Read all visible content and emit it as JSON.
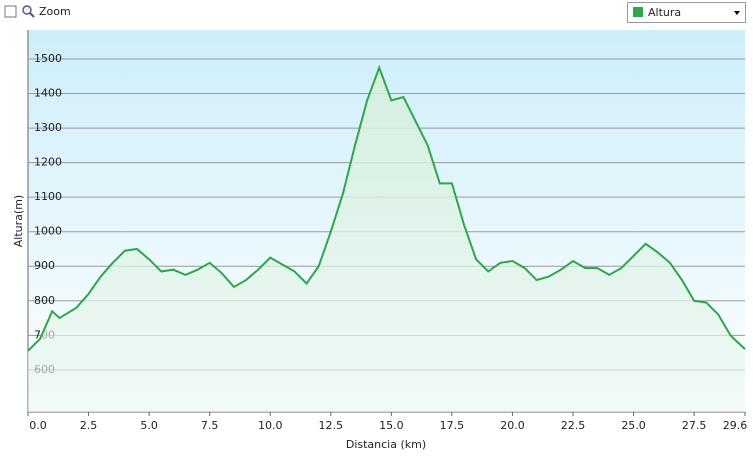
{
  "toolbar": {
    "zoom": "Zoom"
  },
  "chart_data": {
    "type": "area",
    "xlabel": "Distancia  (km)",
    "ylabel": "Altura(m)",
    "x": [
      0,
      0.5,
      1.0,
      1.3,
      2.0,
      2.5,
      3.0,
      3.5,
      4.0,
      4.5,
      5.0,
      5.5,
      6.0,
      6.5,
      7.0,
      7.5,
      8.0,
      8.5,
      9.0,
      9.5,
      10.0,
      10.5,
      11.0,
      11.5,
      12.0,
      12.5,
      13.0,
      13.5,
      14.0,
      14.5,
      15.0,
      15.5,
      16.0,
      16.5,
      17.0,
      17.5,
      18.0,
      18.5,
      19.0,
      19.5,
      20.0,
      20.5,
      21.0,
      21.5,
      22.0,
      22.5,
      23.0,
      23.5,
      24.0,
      24.5,
      25.0,
      25.5,
      26.0,
      26.5,
      27.0,
      27.5,
      28.0,
      28.5,
      29.0,
      29.6
    ],
    "series": [
      {
        "name": "Altura",
        "color": "#2ea64a",
        "values": [
          655,
          690,
          770,
          750,
          780,
          820,
          870,
          910,
          945,
          950,
          920,
          885,
          890,
          875,
          890,
          910,
          880,
          840,
          860,
          890,
          925,
          905,
          885,
          850,
          900,
          1000,
          1110,
          1250,
          1380,
          1475,
          1380,
          1390,
          1320,
          1250,
          1140,
          1140,
          1020,
          920,
          885,
          910,
          915,
          895,
          860,
          870,
          890,
          915,
          895,
          895,
          875,
          895,
          930,
          965,
          940,
          910,
          860,
          800,
          795,
          760,
          700,
          660
        ]
      }
    ],
    "xlim": [
      0,
      29.6
    ],
    "ylim": [
      478,
      1584
    ],
    "xticks": [
      {
        "value": 0,
        "label": "0.0"
      },
      2.5,
      {
        "value": 5,
        "label": "5.0"
      },
      7.5,
      {
        "value": 10,
        "label": "10.0"
      },
      12.5,
      {
        "value": 15,
        "label": "15.0"
      },
      17.5,
      {
        "value": 20,
        "label": "20.0"
      },
      22.5,
      {
        "value": 25,
        "label": "25.0"
      },
      27.5,
      29.6
    ],
    "yticks": [
      600,
      700,
      800,
      900,
      1000,
      1100,
      1200,
      1300,
      1400,
      1500
    ],
    "grid": true
  }
}
